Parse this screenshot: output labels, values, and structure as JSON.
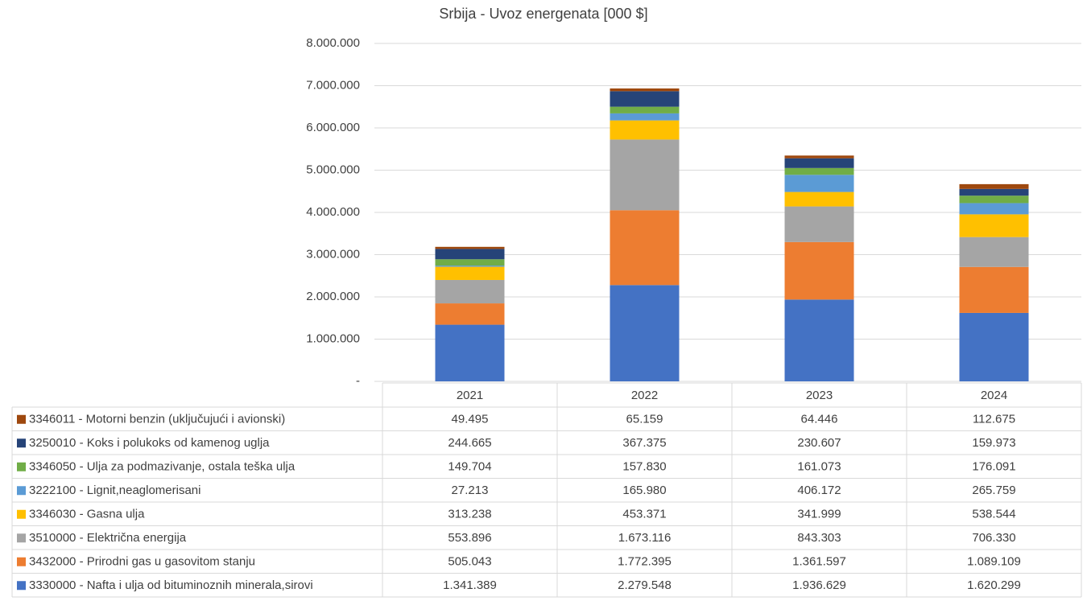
{
  "chart_data": {
    "type": "bar",
    "stacked": true,
    "title": "Srbija - Uvoz energenata [000 $]",
    "categories": [
      "2021",
      "2022",
      "2023",
      "2024"
    ],
    "ylim": [
      0,
      8000000
    ],
    "yticks": [
      {
        "value": 0,
        "label": "-"
      },
      {
        "value": 1000000,
        "label": "1.000.000"
      },
      {
        "value": 2000000,
        "label": "2.000.000"
      },
      {
        "value": 3000000,
        "label": "3.000.000"
      },
      {
        "value": 4000000,
        "label": "4.000.000"
      },
      {
        "value": 5000000,
        "label": "5.000.000"
      },
      {
        "value": 6000000,
        "label": "6.000.000"
      },
      {
        "value": 7000000,
        "label": "7.000.000"
      },
      {
        "value": 8000000,
        "label": "8.000.000"
      }
    ],
    "grid": true,
    "series": [
      {
        "name": "3330000 - Nafta i ulja od bituminoznih minerala,sirovi",
        "color": "#4472c4",
        "values": [
          1341389,
          2279548,
          1936629,
          1620299
        ],
        "value_labels": [
          "1.341.389",
          "2.279.548",
          "1.936.629",
          "1.620.299"
        ]
      },
      {
        "name": "3432000 - Prirodni gas u gasovitom stanju",
        "color": "#ed7d31",
        "values": [
          505043,
          1772395,
          1361597,
          1089109
        ],
        "value_labels": [
          "505.043",
          "1.772.395",
          "1.361.597",
          "1.089.109"
        ]
      },
      {
        "name": "3510000 - Električna energija",
        "color": "#a5a5a5",
        "values": [
          553896,
          1673116,
          843303,
          706330
        ],
        "value_labels": [
          "553.896",
          "1.673.116",
          "843.303",
          "706.330"
        ]
      },
      {
        "name": "3346030 - Gasna ulja",
        "color": "#ffc000",
        "values": [
          313238,
          453371,
          341999,
          538544
        ],
        "value_labels": [
          "313.238",
          "453.371",
          "341.999",
          "538.544"
        ]
      },
      {
        "name": "3222100 - Lignit,neaglomerisani",
        "color": "#5b9bd5",
        "values": [
          27213,
          165980,
          406172,
          265759
        ],
        "value_labels": [
          "27.213",
          "165.980",
          "406.172",
          "265.759"
        ]
      },
      {
        "name": "3346050 - Ulja za podmazivanje, ostala teška ulja",
        "color": "#70ad47",
        "values": [
          149704,
          157830,
          161073,
          176091
        ],
        "value_labels": [
          "149.704",
          "157.830",
          "161.073",
          "176.091"
        ]
      },
      {
        "name": "3250010 - Koks i polukoks od kamenog uglja",
        "color": "#264478",
        "values": [
          244665,
          367375,
          230607,
          159973
        ],
        "value_labels": [
          "244.665",
          "367.375",
          "230.607",
          "159.973"
        ]
      },
      {
        "name": "3346011 - Motorni benzin (uključujući i avionski)",
        "color": "#9e480e",
        "values": [
          49495,
          65159,
          64446,
          112675
        ],
        "value_labels": [
          "49.495",
          "65.159",
          "64.446",
          "112.675"
        ]
      }
    ]
  }
}
